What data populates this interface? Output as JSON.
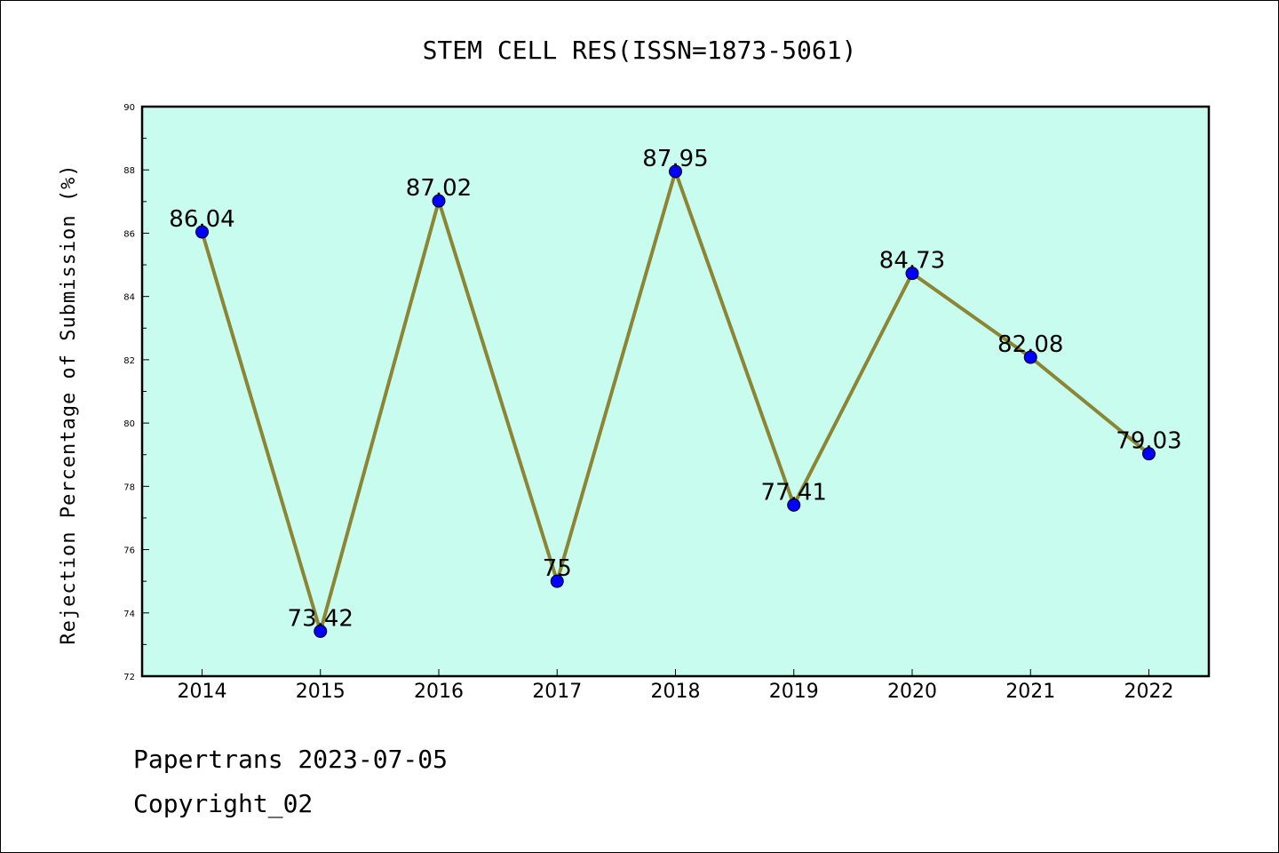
{
  "chart_data": {
    "type": "line",
    "title": "STEM CELL RES(ISSN=1873-5061)",
    "xlabel": "",
    "ylabel": "Rejection Percentage of Submission (%)",
    "categories": [
      "2014",
      "2015",
      "2016",
      "2017",
      "2018",
      "2019",
      "2020",
      "2021",
      "2022"
    ],
    "series": [
      {
        "values": [
          86.04,
          73.42,
          87.02,
          75,
          87.95,
          77.41,
          84.73,
          82.08,
          79.03
        ],
        "labels": [
          "86.04",
          "73.42",
          "87.02",
          "75",
          "87.95",
          "77.41",
          "84.73",
          "82.08",
          "79.03"
        ],
        "line_color": "#8b8534",
        "marker_color": "#0000ff"
      }
    ],
    "ylim": [
      72,
      90
    ],
    "yticks": [
      72,
      74,
      76,
      78,
      80,
      82,
      84,
      86,
      88,
      90
    ],
    "grid": false,
    "plot_background": "#c8fcee"
  },
  "footer": {
    "line1": "Papertrans 2023-07-05",
    "line2": "Copyright_02"
  }
}
